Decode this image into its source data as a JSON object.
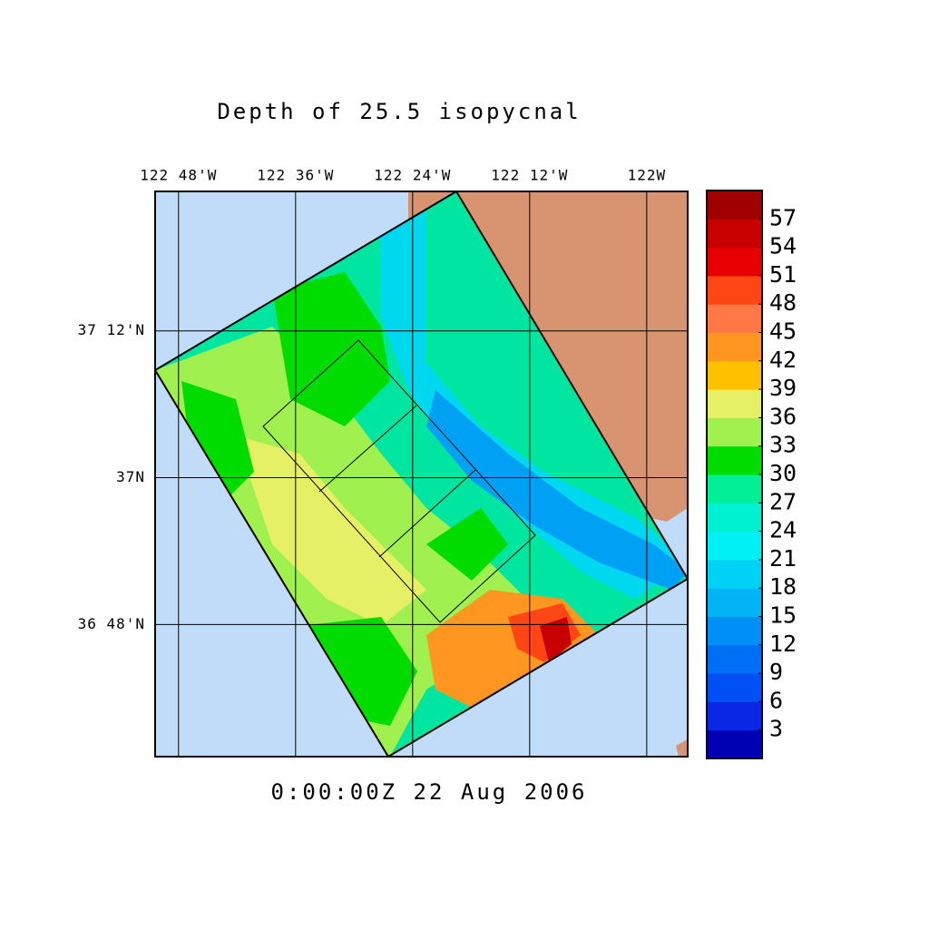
{
  "chart_data": {
    "type": "map",
    "title": "Depth of 25.5 isopycnal",
    "time_label": "0:00:00Z  22 Aug 2006",
    "xlim": [
      -122.84,
      -121.93
    ],
    "ylim": [
      36.62,
      37.39
    ],
    "xticks": [
      {
        "value": -122.8,
        "label": "122 48'W"
      },
      {
        "value": -122.6,
        "label": "122 36'W"
      },
      {
        "value": -122.4,
        "label": "122 24'W"
      },
      {
        "value": -122.2,
        "label": "122 12'W"
      },
      {
        "value": -122,
        "label": "122W"
      }
    ],
    "yticks": [
      {
        "value": 37.2,
        "label": "37 12'N"
      },
      {
        "value": 37,
        "label": "37N"
      },
      {
        "value": 36.8,
        "label": "36 48'N"
      }
    ],
    "grid": true,
    "colorbar": {
      "lim": [
        0,
        60
      ],
      "ticks": [
        3,
        6,
        9,
        12,
        15,
        18,
        21,
        24,
        27,
        30,
        33,
        36,
        39,
        42,
        45,
        48,
        51,
        54,
        57
      ],
      "colors": [
        "#0000b4",
        "#0a28e6",
        "#0050f5",
        "#006ef5",
        "#0090f5",
        "#00b4f5",
        "#00d2f5",
        "#00f0f5",
        "#00f0d2",
        "#00f096",
        "#00dc00",
        "#a0f050",
        "#e6f064",
        "#ffc000",
        "#ff9620",
        "#ff7846",
        "#ff4614",
        "#e60000",
        "#c80000",
        "#a00000"
      ]
    }
  }
}
